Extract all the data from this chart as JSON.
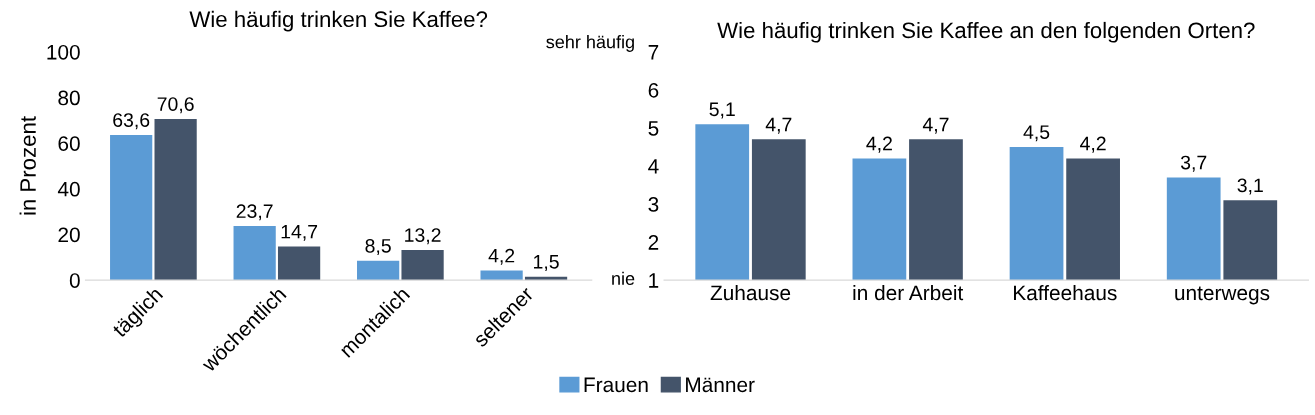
{
  "chart_data": [
    {
      "type": "bar",
      "title": "Wie häufig trinken Sie Kaffee?",
      "ylabel": "in Prozent",
      "categories": [
        "täglich",
        "wöchentlich",
        "montalich",
        "seltener"
      ],
      "ylim": [
        0,
        100
      ],
      "yticks": [
        0,
        20,
        40,
        60,
        80,
        100
      ],
      "legend": "bottom",
      "series": [
        {
          "name": "Frauen",
          "color": "#5b9bd5",
          "values": [
            63.6,
            23.7,
            8.5,
            4.2
          ],
          "value_labels": [
            "63,6",
            "23,7",
            "8,5",
            "4,2"
          ]
        },
        {
          "name": "Männer",
          "color": "#44546a",
          "values": [
            70.6,
            14.7,
            13.2,
            1.5
          ],
          "value_labels": [
            "70,6",
            "14,7",
            "13,2",
            "1,5"
          ]
        }
      ]
    },
    {
      "type": "bar",
      "title": "Wie häufig trinken Sie Kaffee an den folgenden Orten?",
      "categories": [
        "Zuhause",
        "in der Arbeit",
        "Kaffeehaus",
        "unterwegs"
      ],
      "ylim": [
        1,
        7
      ],
      "yticks": [
        1,
        2,
        3,
        4,
        5,
        6,
        7
      ],
      "annotations": [
        "sehr häufig",
        "nie"
      ],
      "series": [
        {
          "name": "Frauen",
          "color": "#5b9bd5",
          "values": [
            5.1,
            4.2,
            4.5,
            3.7
          ],
          "value_labels": [
            "5,1",
            "4,2",
            "4,5",
            "3,7"
          ]
        },
        {
          "name": "Männer",
          "color": "#44546a",
          "values": [
            4.7,
            4.7,
            4.2,
            3.1
          ],
          "value_labels": [
            "4,7",
            "4,7",
            "4,2",
            "3,1"
          ]
        }
      ]
    }
  ]
}
